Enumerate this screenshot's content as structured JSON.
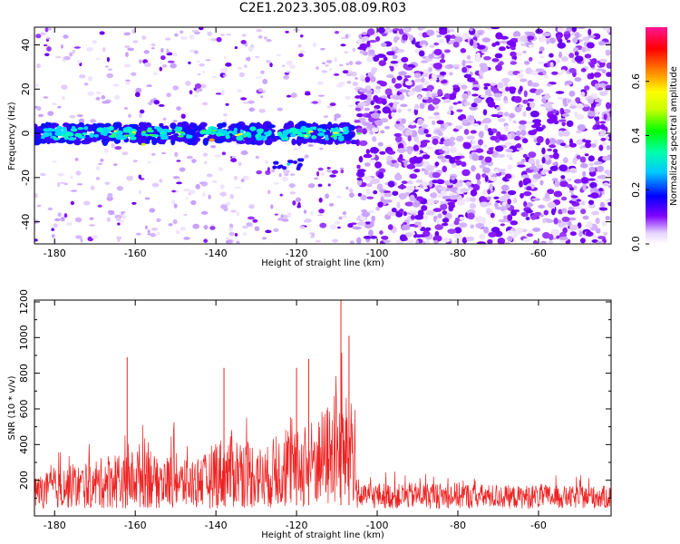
{
  "title": "C2E1.2023.305.08.09.R03",
  "colors": {
    "snr_line": "#ee2222",
    "scale": [
      "#ffffff",
      "#7b00ff",
      "#0000ff",
      "#00d8ff",
      "#00ff00",
      "#ffff00",
      "#ff8000",
      "#ff0000",
      "#ff1493"
    ]
  },
  "chart_data": [
    {
      "type": "heatmap",
      "title": "C2E1.2023.305.08.09.R03",
      "xlabel": "Height of straight line (km)",
      "ylabel": "Frequency (Hz)",
      "xlim": [
        -185,
        -42
      ],
      "ylim": [
        -50,
        48
      ],
      "xticks": [
        -180,
        -160,
        -140,
        -120,
        -100,
        -80,
        -60
      ],
      "yticks": [
        -40,
        -20,
        0,
        20,
        40
      ],
      "colorbar": {
        "label": "Normalized spectral amplitude",
        "range": [
          0,
          0.8
        ],
        "ticks": [
          0.0,
          0.2,
          0.4,
          0.6
        ]
      },
      "features": {
        "band_frequency_hz": 0,
        "band_x_range": [
          -185,
          -105
        ],
        "secondary_blob": {
          "x": -122,
          "y": -14
        },
        "dense_noise_x_range": [
          -105,
          -42
        ]
      }
    },
    {
      "type": "line",
      "xlabel": "Height of straight line (km)",
      "ylabel": "SNR (10 * v/v)",
      "xlim": [
        -185,
        -42
      ],
      "ylim": [
        0,
        1210
      ],
      "xticks": [
        -180,
        -160,
        -140,
        -120,
        -100,
        -80,
        -60
      ],
      "yticks": [
        200,
        400,
        600,
        800,
        1000,
        1200
      ],
      "series": [
        {
          "x": [
            -185,
            -180,
            -175,
            -170,
            -168,
            -165,
            -163,
            -160,
            -157,
            -155,
            -152,
            -150,
            -148,
            -145,
            -142,
            -140,
            -138,
            -135,
            -132,
            -130,
            -128,
            -125,
            -122,
            -120,
            -118,
            -115,
            -112,
            -110,
            -108,
            -106,
            -105,
            -104,
            -100,
            -95,
            -90,
            -85,
            -80,
            -75,
            -70,
            -65,
            -60,
            -55,
            -50,
            -45,
            -42
          ],
          "y": [
            180,
            220,
            250,
            240,
            300,
            330,
            280,
            350,
            420,
            280,
            300,
            330,
            260,
            300,
            310,
            420,
            390,
            420,
            400,
            380,
            330,
            420,
            440,
            430,
            480,
            520,
            600,
            620,
            640,
            580,
            160,
            130,
            150,
            140,
            150,
            145,
            150,
            140,
            135,
            130,
            140,
            130,
            125,
            130,
            130
          ]
        }
      ],
      "peaks": [
        {
          "x": -162,
          "y": 890
        },
        {
          "x": -138,
          "y": 830
        },
        {
          "x": -120,
          "y": 830
        },
        {
          "x": -117,
          "y": 880
        },
        {
          "x": -109,
          "y": 1210
        },
        {
          "x": -107,
          "y": 1010
        }
      ]
    }
  ]
}
